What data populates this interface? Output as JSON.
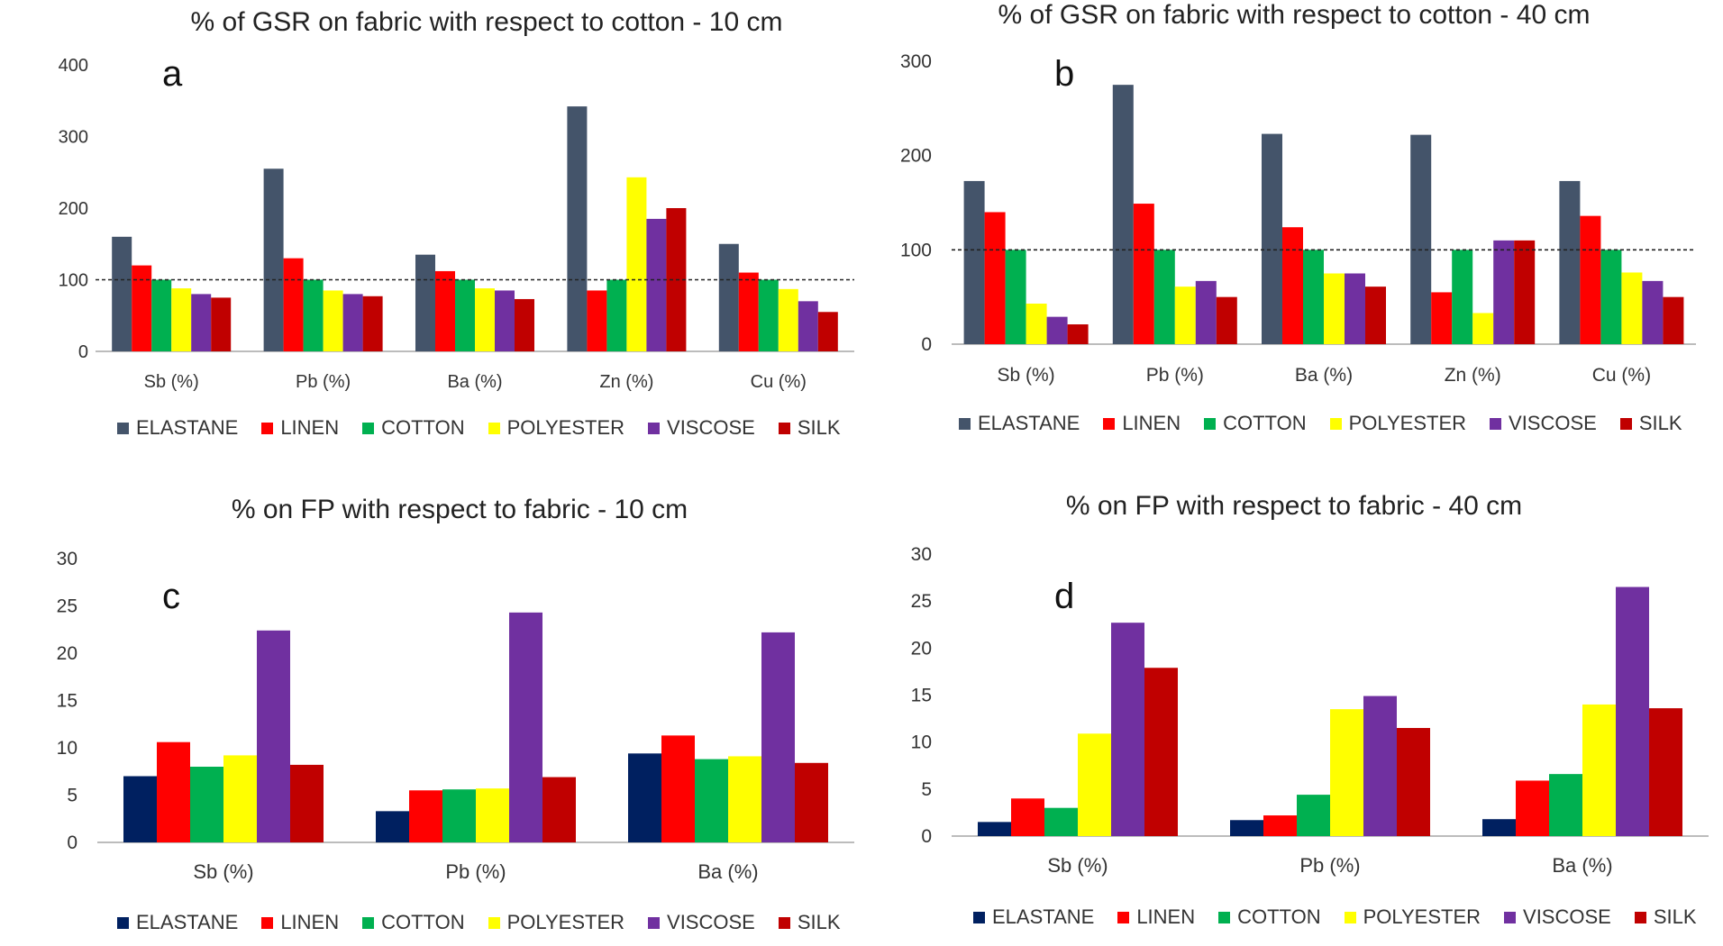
{
  "colors": {
    "elastane_top": "#44546a",
    "elastane_bottom": "#002060",
    "linen": "#ff0000",
    "cotton": "#00b050",
    "polyester": "#ffff00",
    "viscose": "#7030a0",
    "silk": "#c00000"
  },
  "chart_data": [
    {
      "type": "bar",
      "panel": "a",
      "title": "% of GSR on fabric with respect to cotton - 10 cm",
      "categories": [
        "Sb (%)",
        "Pb (%)",
        "Ba (%)",
        "Zn (%)",
        "Cu (%)"
      ],
      "ylim": [
        0,
        400
      ],
      "yticks": [
        0,
        100,
        200,
        300,
        400
      ],
      "reference_line": 100,
      "legend_position": "bottom",
      "series": [
        {
          "name": "ELASTANE",
          "values": [
            160,
            255,
            135,
            342,
            150
          ]
        },
        {
          "name": "LINEN",
          "values": [
            120,
            130,
            112,
            85,
            110
          ]
        },
        {
          "name": "COTTON",
          "values": [
            100,
            100,
            100,
            100,
            100
          ]
        },
        {
          "name": "POLYESTER",
          "values": [
            88,
            85,
            88,
            243,
            87
          ]
        },
        {
          "name": "VISCOSE",
          "values": [
            80,
            80,
            85,
            185,
            70
          ]
        },
        {
          "name": "SILK",
          "values": [
            75,
            77,
            73,
            200,
            55
          ]
        }
      ]
    },
    {
      "type": "bar",
      "panel": "b",
      "title": "% of GSR on fabric with respect to cotton - 40 cm",
      "categories": [
        "Sb (%)",
        "Pb (%)",
        "Ba (%)",
        "Zn (%)",
        "Cu (%)"
      ],
      "ylim": [
        0,
        300
      ],
      "yticks": [
        0,
        100,
        200,
        300
      ],
      "reference_line": 100,
      "legend_position": "bottom",
      "series": [
        {
          "name": "ELASTANE",
          "values": [
            173,
            275,
            223,
            222,
            173
          ]
        },
        {
          "name": "LINEN",
          "values": [
            140,
            149,
            124,
            55,
            136
          ]
        },
        {
          "name": "COTTON",
          "values": [
            100,
            100,
            100,
            100,
            100
          ]
        },
        {
          "name": "POLYESTER",
          "values": [
            43,
            61,
            75,
            33,
            76
          ]
        },
        {
          "name": "VISCOSE",
          "values": [
            29,
            67,
            75,
            110,
            67
          ]
        },
        {
          "name": "SILK",
          "values": [
            21,
            50,
            61,
            110,
            50
          ]
        }
      ]
    },
    {
      "type": "bar",
      "panel": "c",
      "title": "% on FP with respect to fabric - 10 cm",
      "categories": [
        "Sb (%)",
        "Pb (%)",
        "Ba (%)"
      ],
      "ylim": [
        0,
        30
      ],
      "yticks": [
        0,
        5,
        10,
        15,
        20,
        25,
        30
      ],
      "legend_position": "bottom",
      "series": [
        {
          "name": "ELASTANE",
          "values": [
            7.0,
            3.3,
            9.4
          ]
        },
        {
          "name": "LINEN",
          "values": [
            10.6,
            5.5,
            11.3
          ]
        },
        {
          "name": "COTTON",
          "values": [
            8.0,
            5.6,
            8.8
          ]
        },
        {
          "name": "POLYESTER",
          "values": [
            9.2,
            5.7,
            9.1
          ]
        },
        {
          "name": "VISCOSE",
          "values": [
            22.4,
            24.3,
            22.2
          ]
        },
        {
          "name": "SILK",
          "values": [
            8.2,
            6.9,
            8.4
          ]
        }
      ]
    },
    {
      "type": "bar",
      "panel": "d",
      "title": "% on FP with respect to fabric - 40 cm",
      "categories": [
        "Sb (%)",
        "Pb (%)",
        "Ba (%)"
      ],
      "ylim": [
        0,
        30
      ],
      "yticks": [
        0,
        5,
        10,
        15,
        20,
        25,
        30
      ],
      "legend_position": "bottom",
      "series": [
        {
          "name": "ELASTANE",
          "values": [
            1.5,
            1.7,
            1.8
          ]
        },
        {
          "name": "LINEN",
          "values": [
            4.0,
            2.2,
            5.9
          ]
        },
        {
          "name": "COTTON",
          "values": [
            3.0,
            4.4,
            6.6
          ]
        },
        {
          "name": "POLYESTER",
          "values": [
            10.9,
            13.5,
            14.0
          ]
        },
        {
          "name": "VISCOSE",
          "values": [
            22.7,
            14.9,
            26.5
          ]
        },
        {
          "name": "SILK",
          "values": [
            17.9,
            11.5,
            13.6
          ]
        }
      ]
    }
  ]
}
